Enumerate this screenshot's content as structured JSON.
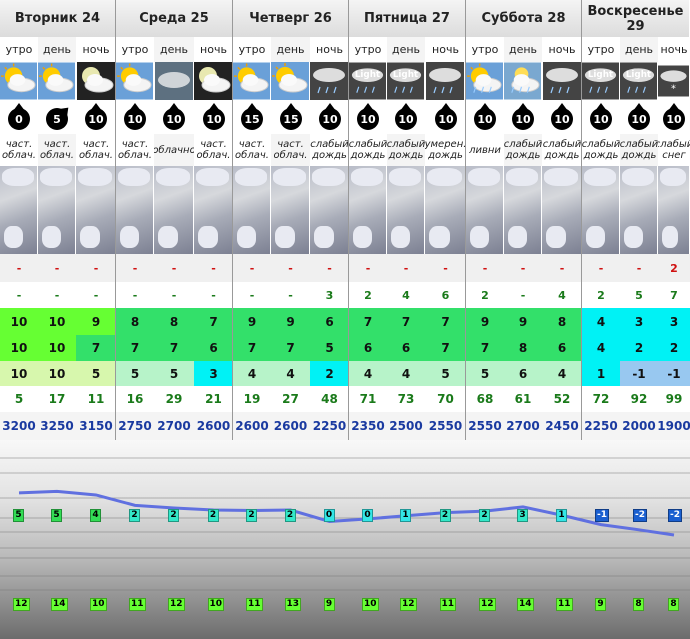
{
  "days": [
    {
      "label": "Вторник 24",
      "periods": [
        "утро",
        "день",
        "ночь"
      ],
      "icons": [
        "sun-cloud-icon",
        "sun-cloud-icon",
        "moon-cloud-icon"
      ],
      "wind": [
        "0",
        "5",
        "10"
      ],
      "wind_dir": [
        0,
        45,
        0
      ],
      "conditions": [
        "част. облач.",
        "част. облач.",
        "част. облач."
      ],
      "snow": [
        "-",
        "-",
        "-"
      ],
      "precip": [
        "-",
        "-",
        "-"
      ],
      "t1": [
        "10",
        "10",
        "9"
      ],
      "t2": [
        "10",
        "10",
        "7"
      ],
      "t3": [
        "10",
        "10",
        "5"
      ],
      "humidity": [
        "5",
        "17",
        "11"
      ],
      "freezing": [
        "3200",
        "3250",
        "3150"
      ]
    },
    {
      "label": "Среда 25",
      "periods": [
        "утро",
        "день",
        "ночь"
      ],
      "icons": [
        "sun-cloud-icon",
        "cloud-icon",
        "moon-cloud-icon"
      ],
      "wind": [
        "10",
        "10",
        "10"
      ],
      "wind_dir": [
        0,
        0,
        0
      ],
      "conditions": [
        "част. облач.",
        "облачно",
        "част. облач."
      ],
      "snow": [
        "-",
        "-",
        "-"
      ],
      "precip": [
        "-",
        "-",
        "-"
      ],
      "t1": [
        "8",
        "8",
        "7"
      ],
      "t2": [
        "7",
        "7",
        "6"
      ],
      "t3": [
        "5",
        "5",
        "3"
      ],
      "humidity": [
        "16",
        "29",
        "21"
      ],
      "freezing": [
        "2750",
        "2700",
        "2600"
      ]
    },
    {
      "label": "Четверг 26",
      "periods": [
        "утро",
        "день",
        "ночь"
      ],
      "icons": [
        "sun-cloud-icon",
        "sun-cloud-icon",
        "rain-icon"
      ],
      "wind": [
        "15",
        "15",
        "10"
      ],
      "wind_dir": [
        0,
        0,
        0
      ],
      "conditions": [
        "част. облач.",
        "част. облач.",
        "слабый дождь"
      ],
      "snow": [
        "-",
        "-",
        "-"
      ],
      "precip": [
        "-",
        "-",
        "3"
      ],
      "t1": [
        "9",
        "9",
        "6"
      ],
      "t2": [
        "7",
        "7",
        "5"
      ],
      "t3": [
        "4",
        "4",
        "2"
      ],
      "humidity": [
        "19",
        "27",
        "48"
      ],
      "freezing": [
        "2600",
        "2600",
        "2250"
      ]
    },
    {
      "label": "Пятница 27",
      "periods": [
        "утро",
        "день",
        "ночь"
      ],
      "icons": [
        "light-rain-icon",
        "light-rain-icon",
        "rain-icon"
      ],
      "icon_text": [
        "Light",
        "Light",
        ""
      ],
      "wind": [
        "10",
        "10",
        "10"
      ],
      "wind_dir": [
        0,
        0,
        0
      ],
      "conditions": [
        "слабый дождь",
        "слабый дождь",
        "умерен. дождь"
      ],
      "snow": [
        "-",
        "-",
        "-"
      ],
      "precip": [
        "2",
        "4",
        "6"
      ],
      "t1": [
        "7",
        "7",
        "7"
      ],
      "t2": [
        "6",
        "6",
        "7"
      ],
      "t3": [
        "4",
        "4",
        "5"
      ],
      "humidity": [
        "71",
        "73",
        "70"
      ],
      "freezing": [
        "2350",
        "2500",
        "2550"
      ]
    },
    {
      "label": "Суббота 28",
      "periods": [
        "утро",
        "день",
        "ночь"
      ],
      "icons": [
        "sun-rain-icon",
        "rain-cloud-icon",
        "rain-icon"
      ],
      "wind": [
        "10",
        "10",
        "10"
      ],
      "wind_dir": [
        0,
        0,
        0
      ],
      "conditions": [
        "ливни",
        "слабый дождь",
        "слабый дождь"
      ],
      "snow": [
        "-",
        "-",
        "-"
      ],
      "precip": [
        "2",
        "-",
        "4"
      ],
      "t1": [
        "9",
        "9",
        "8"
      ],
      "t2": [
        "7",
        "8",
        "6"
      ],
      "t3": [
        "5",
        "6",
        "4"
      ],
      "humidity": [
        "68",
        "61",
        "52"
      ],
      "freezing": [
        "2550",
        "2700",
        "2450"
      ]
    },
    {
      "label": "Воскресенье 29",
      "periods": [
        "утро",
        "день",
        "ночь"
      ],
      "icons": [
        "light-rain-icon",
        "light-rain-icon",
        "snow-icon"
      ],
      "icon_text": [
        "Light",
        "Light",
        ""
      ],
      "wind": [
        "10",
        "10",
        "10"
      ],
      "wind_dir": [
        0,
        0,
        0
      ],
      "conditions": [
        "слабый дождь",
        "слабый дождь",
        "слабый снег"
      ],
      "snow": [
        "-",
        "-",
        "2"
      ],
      "precip": [
        "2",
        "5",
        "7"
      ],
      "t1": [
        "4",
        "3",
        "3"
      ],
      "t2": [
        "4",
        "2",
        "2"
      ],
      "t3": [
        "1",
        "-1",
        "-1"
      ],
      "humidity": [
        "72",
        "92",
        "99"
      ],
      "freezing": [
        "2250",
        "2000",
        "1900"
      ]
    }
  ],
  "chart": {
    "upper": [
      "5",
      "5",
      "4",
      "2",
      "2",
      "2",
      "2",
      "2",
      "0",
      "0",
      "1",
      "2",
      "2",
      "3",
      "1",
      "-1",
      "-2",
      "-2"
    ],
    "lower": [
      "12",
      "14",
      "10",
      "11",
      "12",
      "10",
      "11",
      "13",
      "9",
      "10",
      "12",
      "11",
      "12",
      "14",
      "11",
      "9",
      "8",
      "8"
    ],
    "line": [
      5.6,
      5.9,
      5.2,
      3.2,
      2.7,
      2.3,
      2.2,
      2.3,
      0.1,
      0.6,
      1.2,
      1.8,
      2.1,
      2.9,
      1.3,
      -0.5,
      -1.5,
      -2.5
    ]
  },
  "colors": {
    "t_green": "#33e06a",
    "t_lime": "#66ff33",
    "t_mint": "#b7f3c9",
    "t_cyan": "#00f2f5",
    "t_blue": "#98c8f0",
    "t_pale": "#d7f7ad"
  }
}
